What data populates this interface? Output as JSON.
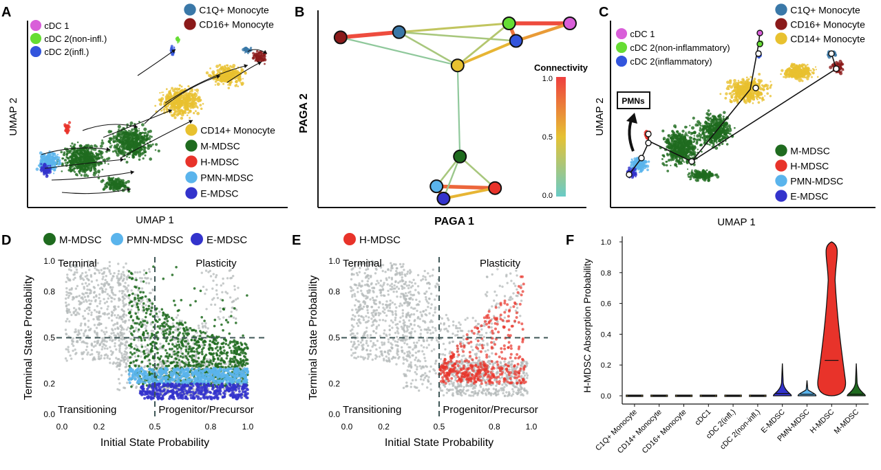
{
  "colors": {
    "cDC1": "#d95fd9",
    "cDC2_noninfl": "#66dd33",
    "cDC2_infl": "#3355dd",
    "C1Q": "#3a78a8",
    "CD16": "#8b1a1a",
    "CD14": "#e8c12f",
    "MMDSC": "#1f6b1f",
    "HMDSC": "#e8332a",
    "PMN": "#5ab4ec",
    "EMDSC": "#3333cc",
    "grey": "#b4b9b9",
    "dash": "#3d5555"
  },
  "panelA": {
    "letter": "A",
    "xlabel": "UMAP 1",
    "ylabel": "UMAP 2",
    "legend_top": [
      {
        "label": "cDC 1",
        "key": "cDC1"
      },
      {
        "label": "cDC 2(non-infl.)",
        "key": "cDC2_noninfl"
      },
      {
        "label": "cDC 2(infl.)",
        "key": "cDC2_infl"
      }
    ],
    "legend_top_right": [
      {
        "label": "C1Q+ Monocyte",
        "key": "C1Q"
      },
      {
        "label": "CD16+ Monocyte",
        "key": "CD16"
      }
    ],
    "legend_bottom_right": [
      {
        "label": "CD14+ Monocyte",
        "key": "CD14"
      },
      {
        "label": "M-MDSC",
        "key": "MMDSC"
      },
      {
        "label": "H-MDSC",
        "key": "HMDSC"
      },
      {
        "label": "PMN-MDSC",
        "key": "PMN"
      },
      {
        "label": "E-MDSC",
        "key": "EMDSC"
      }
    ]
  },
  "panelB": {
    "letter": "B",
    "xlabel": "PAGA 1",
    "ylabel": "PAGA 2",
    "colorbar_title": "Connectivity",
    "colorbar_ticks": [
      "1.0",
      "0.5",
      "0.0"
    ]
  },
  "panelC": {
    "letter": "C",
    "xlabel": "UMAP 1",
    "ylabel": "UMAP 2",
    "box_label": "PMNs",
    "legend_top": [
      {
        "label": "cDC 1",
        "key": "cDC1"
      },
      {
        "label": "cDC 2(non-inflammatory)",
        "key": "cDC2_noninfl"
      },
      {
        "label": "cDC 2(inflammatory)",
        "key": "cDC2_infl"
      }
    ],
    "legend_top_right": [
      {
        "label": "C1Q+ Monocyte",
        "key": "C1Q"
      },
      {
        "label": "CD16+ Monocyte",
        "key": "CD16"
      },
      {
        "label": "CD14+ Monocyte",
        "key": "CD14"
      }
    ],
    "legend_bottom_right": [
      {
        "label": "M-MDSC",
        "key": "MMDSC"
      },
      {
        "label": "H-MDSC",
        "key": "HMDSC"
      },
      {
        "label": "PMN-MDSC",
        "key": "PMN"
      },
      {
        "label": "E-MDSC",
        "key": "EMDSC"
      }
    ]
  },
  "panelD": {
    "letter": "D",
    "legend": [
      {
        "label": "M-MDSC",
        "key": "MMDSC"
      },
      {
        "label": "PMN-MDSC",
        "key": "PMN"
      },
      {
        "label": "E-MDSC",
        "key": "EMDSC"
      }
    ],
    "xlabel": "Initial State Probability",
    "ylabel": "Terminal State Probability",
    "xticks": [
      "0.0",
      "0.2",
      "0.5",
      "0.8",
      "1.0"
    ],
    "yticks": [
      "0.0",
      "0.2",
      "0.5",
      "0.8",
      "1.0"
    ],
    "quadrants": {
      "tl": "Terminal",
      "tr": "Plasticity",
      "bl": "Transitioning",
      "br": "Progenitor/Precursor"
    }
  },
  "panelE": {
    "letter": "E",
    "legend": [
      {
        "label": "H-MDSC",
        "key": "HMDSC"
      }
    ],
    "xlabel": "Initial State Probability",
    "ylabel": "Terminal State Probability",
    "xticks": [
      "0.0",
      "0.2",
      "0.5",
      "0.8",
      "1.0"
    ],
    "yticks": [
      "0.0",
      "0.2",
      "0.5",
      "0.8",
      "1.0"
    ],
    "quadrants": {
      "tl": "Terminal",
      "tr": "Plasticity",
      "bl": "Transitioning",
      "br": "Progenitor/Precursor"
    }
  },
  "panelF": {
    "letter": "F"
  },
  "chart_data": [
    {
      "panel": "A",
      "type": "scatter",
      "xlabel": "UMAP 1",
      "ylabel": "UMAP 2",
      "series": [
        {
          "name": "cDC 1"
        },
        {
          "name": "cDC 2(non-infl.)"
        },
        {
          "name": "cDC 2(infl.)"
        },
        {
          "name": "C1Q+ Monocyte"
        },
        {
          "name": "CD16+ Monocyte"
        },
        {
          "name": "CD14+ Monocyte"
        },
        {
          "name": "M-MDSC"
        },
        {
          "name": "H-MDSC"
        },
        {
          "name": "PMN-MDSC"
        },
        {
          "name": "E-MDSC"
        }
      ]
    },
    {
      "panel": "B",
      "type": "scatter",
      "xlabel": "PAGA 1",
      "ylabel": "PAGA 2",
      "colorbar": {
        "title": "Connectivity",
        "range": [
          0,
          1
        ]
      },
      "nodes": [
        {
          "id": "CD16",
          "x": 0.02,
          "y": 0.92
        },
        {
          "id": "C1Q",
          "x": 0.27,
          "y": 0.95
        },
        {
          "id": "cDC2_noninfl",
          "x": 0.74,
          "y": 1.0
        },
        {
          "id": "cDC1",
          "x": 1.0,
          "y": 1.0
        },
        {
          "id": "cDC2_infl",
          "x": 0.77,
          "y": 0.9
        },
        {
          "id": "CD14",
          "x": 0.52,
          "y": 0.76
        },
        {
          "id": "MMDSC",
          "x": 0.53,
          "y": 0.24
        },
        {
          "id": "PMN",
          "x": 0.43,
          "y": 0.07
        },
        {
          "id": "HMDSC",
          "x": 0.68,
          "y": 0.06
        },
        {
          "id": "EMDSC",
          "x": 0.46,
          "y": 0.0
        }
      ],
      "edges": [
        {
          "source": "CD16",
          "target": "C1Q",
          "connectivity": 0.95
        },
        {
          "source": "C1Q",
          "target": "cDC2_noninfl",
          "connectivity": 0.35
        },
        {
          "source": "cDC2_noninfl",
          "target": "cDC1",
          "connectivity": 0.95
        },
        {
          "source": "cDC2_infl",
          "target": "cDC1",
          "connectivity": 0.65
        },
        {
          "source": "C1Q",
          "target": "cDC2_infl",
          "connectivity": 0.25
        },
        {
          "source": "C1Q",
          "target": "CD14",
          "connectivity": 0.25
        },
        {
          "source": "CD16",
          "target": "CD14",
          "connectivity": 0.15
        },
        {
          "source": "CD14",
          "target": "cDC2_infl",
          "connectivity": 0.55
        },
        {
          "source": "CD14",
          "target": "cDC2_noninfl",
          "connectivity": 0.3
        },
        {
          "source": "cDC2_noninfl",
          "target": "cDC2_infl",
          "connectivity": 0.8
        },
        {
          "source": "CD14",
          "target": "MMDSC",
          "connectivity": 0.15
        },
        {
          "source": "MMDSC",
          "target": "PMN",
          "connectivity": 0.25
        },
        {
          "source": "MMDSC",
          "target": "HMDSC",
          "connectivity": 0.25
        },
        {
          "source": "PMN",
          "target": "HMDSC",
          "connectivity": 0.85
        },
        {
          "source": "PMN",
          "target": "EMDSC",
          "connectivity": 0.75
        },
        {
          "source": "EMDSC",
          "target": "HMDSC",
          "connectivity": 0.55
        },
        {
          "source": "MMDSC",
          "target": "EMDSC",
          "connectivity": 0.2
        }
      ]
    },
    {
      "panel": "C",
      "type": "scatter",
      "xlabel": "UMAP 1",
      "ylabel": "UMAP 2",
      "annotations": [
        "PMNs"
      ]
    },
    {
      "panel": "D",
      "type": "scatter",
      "xlabel": "Initial State Probability",
      "ylabel": "Terminal State Probability",
      "xlim": [
        0,
        1
      ],
      "ylim": [
        0,
        1
      ],
      "reference_lines": {
        "x": 0.5,
        "y": 0.5
      },
      "series": [
        {
          "name": "M-MDSC",
          "x_range": [
            0.35,
            1.0
          ],
          "y_range": [
            0.15,
            0.95
          ]
        },
        {
          "name": "PMN-MDSC",
          "x_range": [
            0.36,
            1.0
          ],
          "y_range": [
            0.15,
            0.3
          ]
        },
        {
          "name": "E-MDSC",
          "x_range": [
            0.42,
            1.0
          ],
          "y_range": [
            0.1,
            0.22
          ]
        }
      ]
    },
    {
      "panel": "E",
      "type": "scatter",
      "xlabel": "Initial State Probability",
      "ylabel": "Terminal State Probability",
      "xlim": [
        0,
        1
      ],
      "ylim": [
        0,
        1
      ],
      "reference_lines": {
        "x": 0.5,
        "y": 0.5
      },
      "series": [
        {
          "name": "H-MDSC",
          "x_range": [
            0.5,
            0.97
          ],
          "y_range": [
            0.18,
            1.0
          ]
        }
      ]
    },
    {
      "panel": "F",
      "type": "violin",
      "ylabel": "H-MDSC Absorption Probability",
      "ylim": [
        0,
        1
      ],
      "yticks": [
        "0.0",
        "0.2",
        "0.4",
        "0.6",
        "0.8",
        "1.0"
      ],
      "categories": [
        "C1Q+ Monocyte",
        "CD14+ Monocyte",
        "CD16+ Monocyte",
        "cDC1",
        "cDC 2(infl.)",
        "cDC 2(non-infl.)",
        "E-MDSC",
        "PMN-MDSC",
        "H-MDSC",
        "M-MDSC"
      ],
      "medians": [
        0.0,
        0.0,
        0.0,
        0.0,
        0.0,
        0.0,
        0.015,
        0.01,
        0.23,
        0.01
      ],
      "maxima": [
        0.005,
        0.01,
        0.005,
        0.003,
        0.01,
        0.02,
        0.21,
        0.1,
        1.0,
        0.21
      ],
      "fill": [
        "CD14",
        "CD14",
        "CD14",
        "CD14",
        "CD14",
        "CD14",
        "EMDSC",
        "PMN",
        "HMDSC",
        "MMDSC"
      ]
    }
  ]
}
